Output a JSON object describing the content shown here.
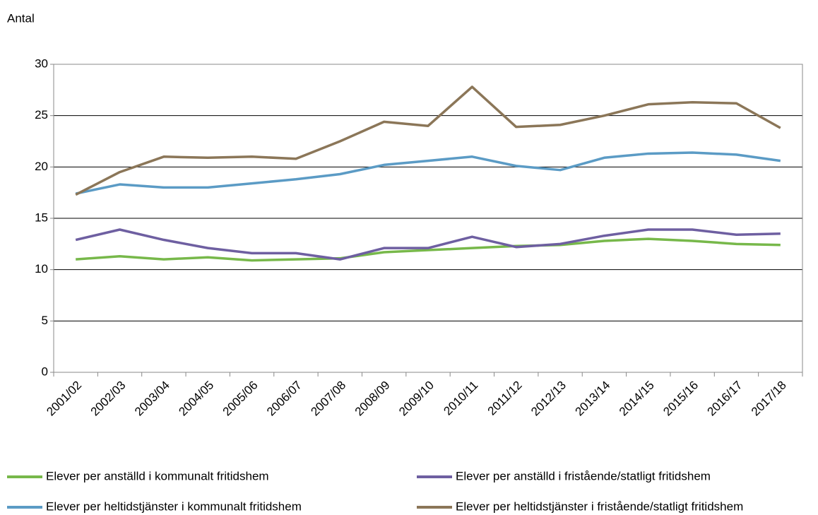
{
  "chart_data": {
    "type": "line",
    "y_label": "Antal",
    "categories": [
      "2001/02",
      "2002/03",
      "2003/04",
      "2004/05",
      "2005/06",
      "2006/07",
      "2007/08",
      "2008/09",
      "2009/10",
      "2010/11",
      "2011/12",
      "2012/13",
      "2013/14",
      "2014/15",
      "2015/16",
      "2016/17",
      "2017/18"
    ],
    "series": [
      {
        "name": "Elever per anställd i kommunalt fritidshem",
        "color": "#77b84a",
        "values": [
          11.0,
          11.3,
          11.0,
          11.2,
          10.9,
          11.0,
          11.1,
          11.7,
          11.9,
          12.1,
          12.3,
          12.4,
          12.8,
          13.0,
          12.8,
          12.5,
          12.4
        ]
      },
      {
        "name": "Elever per anställd i fristående/statligt fritidshem",
        "color": "#6e5fa1",
        "values": [
          12.9,
          13.9,
          12.9,
          12.1,
          11.6,
          11.6,
          11.0,
          12.1,
          12.1,
          13.2,
          12.2,
          12.5,
          13.3,
          13.9,
          13.9,
          13.4,
          13.5
        ]
      },
      {
        "name": "Elever per heltidstjänster i kommunalt fritidshem",
        "color": "#5b9bc5",
        "values": [
          17.4,
          18.3,
          18.0,
          18.0,
          18.4,
          18.8,
          19.3,
          20.2,
          20.6,
          21.0,
          20.1,
          19.7,
          20.9,
          21.3,
          21.4,
          21.2,
          20.6
        ]
      },
      {
        "name": "Elever per heltidstjänster i fristående/statligt fritidshem",
        "color": "#8b7658",
        "values": [
          17.3,
          19.5,
          21.0,
          20.9,
          21.0,
          20.8,
          22.5,
          24.4,
          24.0,
          27.8,
          23.9,
          24.1,
          25.0,
          26.1,
          26.3,
          26.2,
          23.8
        ]
      }
    ],
    "ylim": [
      0,
      30
    ],
    "yticks": [
      0,
      5,
      10,
      15,
      20,
      25,
      30
    ],
    "grid": true
  }
}
